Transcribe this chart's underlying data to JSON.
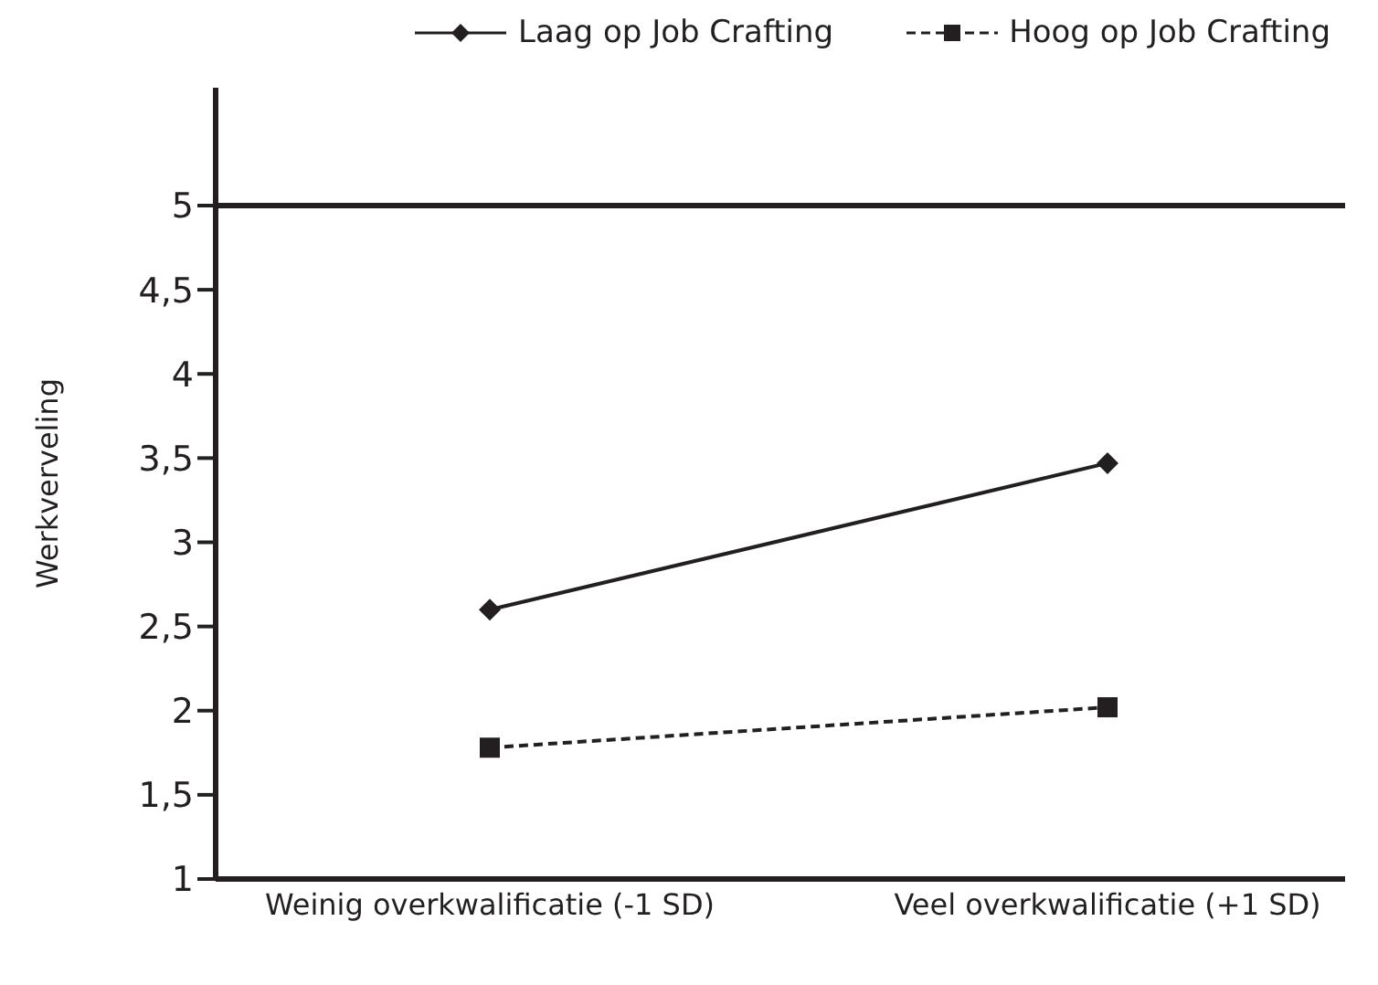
{
  "chart_data": {
    "type": "line",
    "ylabel": "Werkverveling",
    "categories": [
      "Weinig overkwalificatie (-1 SD)",
      "Veel overkwalificatie (+1 SD)"
    ],
    "series": [
      {
        "name": "Laag op Job Crafting",
        "color": "#231f20",
        "values": [
          2.6,
          3.47
        ],
        "marker": "diamond",
        "line_style": "solid"
      },
      {
        "name": "Hoog op Job Crafting",
        "color": "#231f20",
        "values": [
          1.78,
          2.02
        ],
        "marker": "square",
        "line_style": "dashed"
      }
    ],
    "ylim": [
      1,
      5.7
    ],
    "yticks": [
      1,
      {
        "value": 1.5,
        "label": "1,5"
      },
      2,
      {
        "value": 2.5,
        "label": "2,5"
      },
      3,
      {
        "value": 3.5,
        "label": "3,5"
      },
      4,
      {
        "value": 4.5,
        "label": "4,5"
      },
      5
    ],
    "ref_lines": [
      {
        "axis": "y",
        "value": 5,
        "color": "#231f20"
      }
    ],
    "legend": "top right"
  }
}
